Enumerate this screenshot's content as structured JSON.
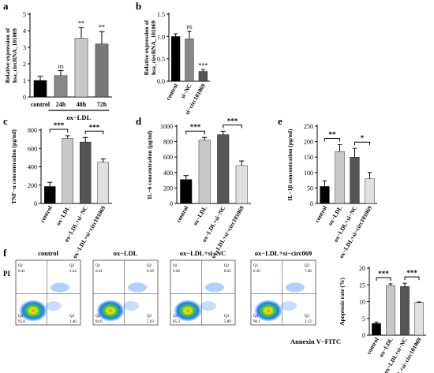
{
  "figure": {
    "colors": {
      "black": "#000000",
      "dark": "#555555",
      "mid": "#888888",
      "light": "#c8c8c8",
      "lighter": "#e0e0e0"
    }
  },
  "panels": [
    {
      "key": "a",
      "letter": "a",
      "ylabel": "Relative expression of hsa_circRNA_101069",
      "group_label": "ox−LDL"
    },
    {
      "key": "b",
      "letter": "b",
      "ylabel": "Relative expression of hsa_circRNA_101069"
    },
    {
      "key": "c",
      "letter": "c",
      "ylabel": "TNF−α concentration (pg/ml)"
    },
    {
      "key": "d",
      "letter": "d",
      "ylabel": "IL−6 concentration (pg/ml)"
    },
    {
      "key": "e",
      "letter": "e",
      "ylabel": "IL−1β concentration (pg/ml)"
    },
    {
      "key": "f",
      "letter": "f",
      "ylabel": "Apoptosis rate (%)"
    }
  ],
  "chart_data": [
    {
      "panel": "a",
      "type": "bar",
      "categories": [
        "control",
        "24h",
        "48h",
        "72h"
      ],
      "values": [
        1.0,
        1.3,
        3.55,
        3.2
      ],
      "errors": [
        0.25,
        0.3,
        0.65,
        0.75
      ],
      "colors": [
        "#000000",
        "#888888",
        "#c8c8c8",
        "#777777"
      ],
      "significance": [
        "",
        "ns",
        "**",
        "**"
      ],
      "ylim": [
        0,
        5
      ],
      "yticks": [
        0,
        1,
        2,
        3,
        4,
        5
      ],
      "ylabel": "Relative expression of hsa_circRNA_101069",
      "group_label": "ox−LDL"
    },
    {
      "panel": "b",
      "type": "bar",
      "categories": [
        "control",
        "si−NC",
        "si−circ101069"
      ],
      "values": [
        1.0,
        0.95,
        0.22
      ],
      "errors": [
        0.06,
        0.17,
        0.04
      ],
      "colors": [
        "#000000",
        "#888888",
        "#555555"
      ],
      "significance": [
        "",
        "ns",
        "***"
      ],
      "ylim": [
        0,
        1.5
      ],
      "yticks": [
        "0.0",
        "0.5",
        "1.0",
        "1.5"
      ],
      "ylabel": "Relative expression of hsa_circRNA_101069"
    },
    {
      "panel": "c",
      "type": "bar",
      "categories": [
        "control",
        "ox−LDL",
        "ox−LDL+si−NC",
        "ox−LDL+si−circ101069"
      ],
      "values": [
        185,
        710,
        670,
        450
      ],
      "errors": [
        45,
        30,
        50,
        35
      ],
      "colors": [
        "#000000",
        "#c8c8c8",
        "#555555",
        "#e0e0e0"
      ],
      "brackets": [
        {
          "from": 0,
          "to": 1,
          "label": "***"
        },
        {
          "from": 2,
          "to": 3,
          "label": "***"
        }
      ],
      "ylim": [
        0,
        800
      ],
      "yticks": [
        0,
        200,
        400,
        600,
        800
      ],
      "ylabel": "TNF−α concentration (pg/ml)"
    },
    {
      "panel": "d",
      "type": "bar",
      "categories": [
        "control",
        "ox−LDL",
        "ox−LDL+si−NC",
        "ox−LDL+si−circ101069"
      ],
      "values": [
        310,
        820,
        890,
        490
      ],
      "errors": [
        50,
        35,
        45,
        60
      ],
      "colors": [
        "#000000",
        "#c8c8c8",
        "#555555",
        "#e0e0e0"
      ],
      "brackets": [
        {
          "from": 0,
          "to": 1,
          "label": "***"
        },
        {
          "from": 2,
          "to": 3,
          "label": "***"
        }
      ],
      "ylim": [
        0,
        1000
      ],
      "yticks": [
        0,
        200,
        400,
        600,
        800,
        1000
      ],
      "ylabel": "IL−6 concentration (pg/ml)"
    },
    {
      "panel": "e",
      "type": "bar",
      "categories": [
        "control",
        "ox−LDL",
        "ox−LDL+si−NC",
        "ox−LDL+si−circ101069"
      ],
      "values": [
        55,
        168,
        150,
        80
      ],
      "errors": [
        18,
        22,
        28,
        20
      ],
      "colors": [
        "#000000",
        "#c8c8c8",
        "#555555",
        "#e0e0e0"
      ],
      "brackets": [
        {
          "from": 0,
          "to": 1,
          "label": "**"
        },
        {
          "from": 2,
          "to": 3,
          "label": "*"
        }
      ],
      "ylim": [
        0,
        250
      ],
      "yticks": [
        0,
        50,
        100,
        150,
        200,
        250
      ],
      "ylabel": "IL−1β concentration (pg/ml)"
    },
    {
      "panel": "f",
      "type": "bar",
      "categories": [
        "control",
        "ox−LDL",
        "ox−LDL+si−NC",
        "ox−LDL+si−circ101069"
      ],
      "values": [
        3.5,
        14.8,
        14.5,
        9.7
      ],
      "errors": [
        0.4,
        0.5,
        1.0,
        0.2
      ],
      "colors": [
        "#000000",
        "#c8c8c8",
        "#555555",
        "#e0e0e0"
      ],
      "brackets": [
        {
          "from": 0,
          "to": 1,
          "label": "***"
        },
        {
          "from": 2,
          "to": 3,
          "label": "***"
        }
      ],
      "ylim": [
        0,
        20
      ],
      "yticks": [
        0,
        5,
        10,
        15,
        20
      ],
      "ylabel": "Apoptosis rate (%)"
    }
  ],
  "flow": {
    "ylabel": "PI",
    "xlabel": "Annexin V−FITC",
    "quadrant_labels": [
      "Q1",
      "Q2",
      "Q3",
      "Q4"
    ],
    "plots": [
      {
        "title": "control",
        "q1": "0.41",
        "q2": "2.34",
        "q3": "1.46",
        "q4": "95.8"
      },
      {
        "title": "ox−LDL",
        "q1": "0.41",
        "q2": "9.18",
        "q3": "5.63",
        "q4": "84.8"
      },
      {
        "title": "ox−LDL+si−NC",
        "q1": "0.28",
        "q2": "8.62",
        "q3": "5.80",
        "q4": "85.3"
      },
      {
        "title": "ox−LDL+si−circ069",
        "q1": "0.30",
        "q2": "7.48",
        "q3": "2.12",
        "q4": "90.1"
      }
    ]
  }
}
